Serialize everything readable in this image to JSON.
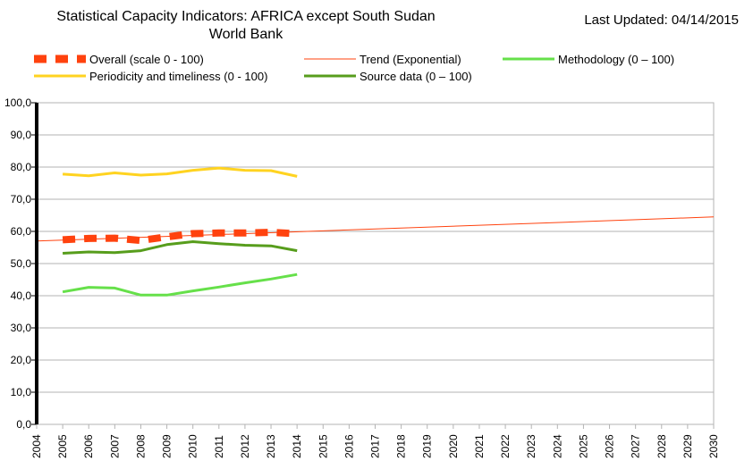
{
  "header": {
    "title_line1": "Statistical Capacity Indicators: AFRICA except South Sudan",
    "title_line2": "World Bank",
    "last_updated_label": "Last Updated:",
    "last_updated_date": "04/14/2015"
  },
  "chart_data": {
    "type": "line",
    "title": "Statistical Capacity Indicators: AFRICA except South Sudan",
    "subtitle": "World Bank",
    "xlabel": "",
    "ylabel": "",
    "xlim": [
      2004,
      2030
    ],
    "ylim": [
      0,
      100
    ],
    "y_ticks": [
      "0,0",
      "10,0",
      "20,0",
      "30,0",
      "40,0",
      "50,0",
      "60,0",
      "70,0",
      "80,0",
      "90,0",
      "100,0"
    ],
    "x_ticks": [
      "2004",
      "2005",
      "2006",
      "2007",
      "2008",
      "2009",
      "2010",
      "2011",
      "2012",
      "2013",
      "2014",
      "2015",
      "2016",
      "2017",
      "2018",
      "2019",
      "2020",
      "2021",
      "2022",
      "2023",
      "2024",
      "2025",
      "2026",
      "2027",
      "2028",
      "2029",
      "2030"
    ],
    "grid": "horizontal",
    "legend_position": "top",
    "series": [
      {
        "name": "Overall  (scale 0 - 100)",
        "color": "#ff420e",
        "style": "dashed-thick",
        "x": [
          2005,
          2006,
          2007,
          2008,
          2009,
          2010,
          2011,
          2012,
          2013,
          2014
        ],
        "values": [
          57.4,
          57.8,
          57.9,
          57.2,
          58.3,
          59.3,
          59.5,
          59.5,
          59.7,
          59.3
        ]
      },
      {
        "name": "Trend (Exponential)",
        "color": "#ff420e",
        "style": "thin",
        "x": [
          2004,
          2030
        ],
        "values": [
          57.0,
          64.5
        ]
      },
      {
        "name": "Methodology (0 – 100)",
        "color": "#66e04a",
        "style": "solid",
        "x": [
          2005,
          2006,
          2007,
          2008,
          2009,
          2010,
          2011,
          2012,
          2013,
          2014
        ],
        "values": [
          41.2,
          42.6,
          42.4,
          40.2,
          40.2,
          41.5,
          42.7,
          44.0,
          45.2,
          46.6
        ]
      },
      {
        "name": "Periodicity and timeliness (0 - 100)",
        "color": "#ffd320",
        "style": "solid",
        "x": [
          2005,
          2006,
          2007,
          2008,
          2009,
          2010,
          2011,
          2012,
          2013,
          2014
        ],
        "values": [
          77.8,
          77.3,
          78.2,
          77.5,
          77.9,
          79.0,
          79.7,
          79.0,
          78.9,
          77.1
        ]
      },
      {
        "name": "Source data (0 – 100)",
        "color": "#579d1c",
        "style": "solid",
        "x": [
          2005,
          2006,
          2007,
          2008,
          2009,
          2010,
          2011,
          2012,
          2013,
          2014
        ],
        "values": [
          53.2,
          53.6,
          53.4,
          54.0,
          55.9,
          56.8,
          56.2,
          55.7,
          55.5,
          54.0
        ]
      }
    ]
  }
}
